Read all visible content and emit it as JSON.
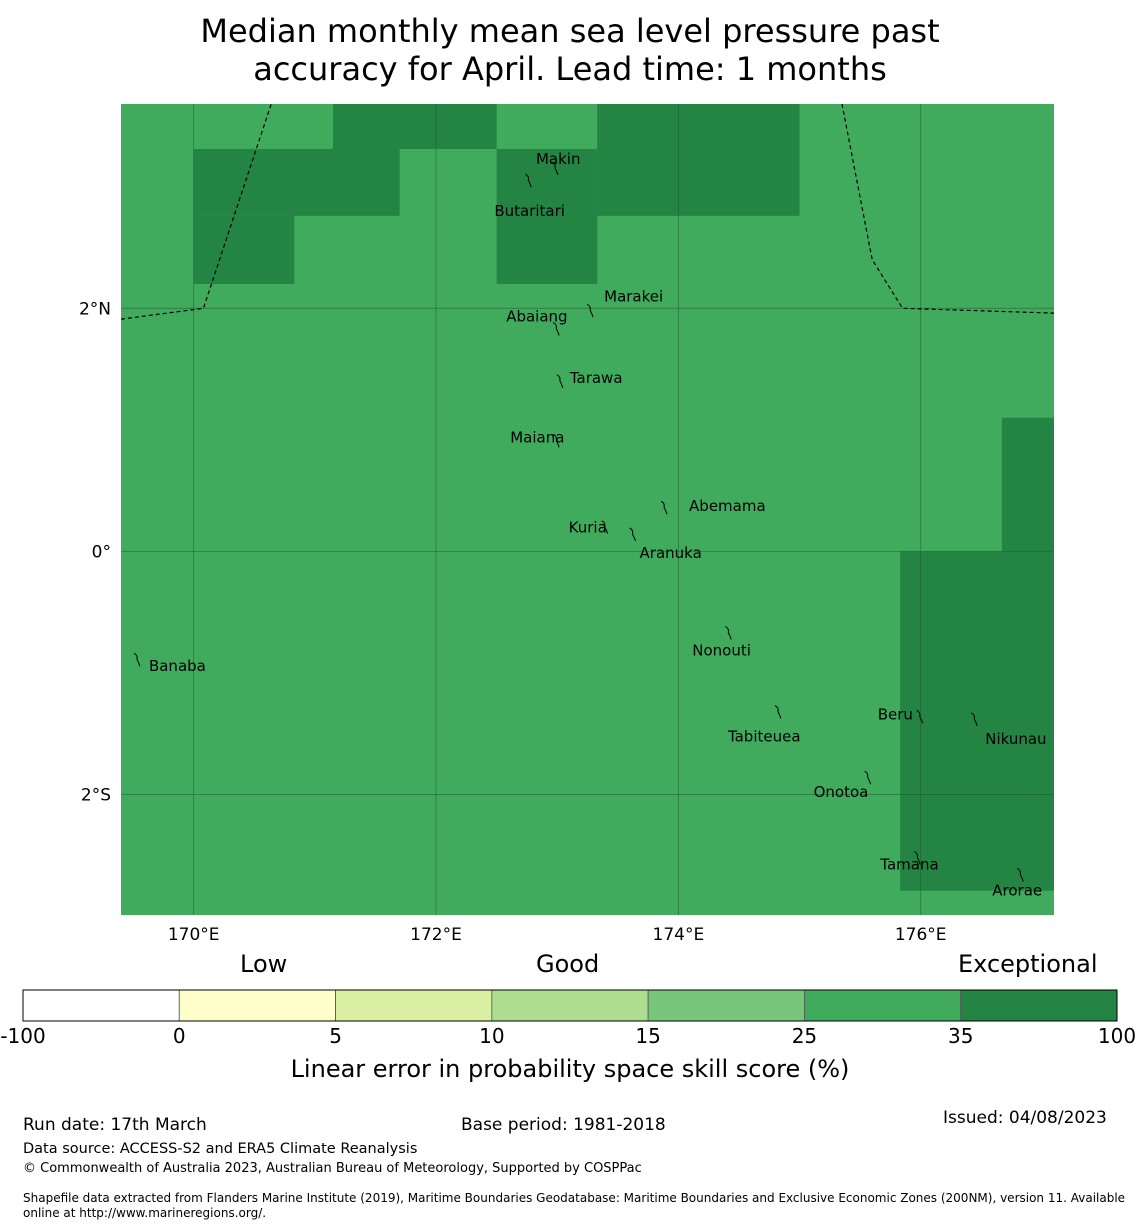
{
  "title_line1": "Median monthly mean sea level pressure past",
  "title_line2": "accuracy for April. Lead time: 1 months",
  "colors": {
    "good": "#41ab5d",
    "exceptional": "#238443",
    "grid": "#1e5a2e",
    "boundary": "#000000"
  },
  "map": {
    "lon_range": [
      169.4,
      177.1
    ],
    "lat_range": [
      -2.99,
      3.68
    ],
    "lon_ticks": [
      {
        "value": 170,
        "label": "170°E"
      },
      {
        "value": 172,
        "label": "172°E"
      },
      {
        "value": 174,
        "label": "174°E"
      },
      {
        "value": 176,
        "label": "176°E"
      }
    ],
    "lat_ticks": [
      {
        "value": 2,
        "label": "2°N"
      },
      {
        "value": 0,
        "label": "0°"
      },
      {
        "value": -2,
        "label": "2°S"
      }
    ],
    "exceptional_cells": [
      {
        "lon": [
          171.15,
          172.5
        ],
        "lat": [
          3.31,
          3.68
        ]
      },
      {
        "lon": [
          170.0,
          171.7
        ],
        "lat": [
          2.76,
          3.31
        ]
      },
      {
        "lon": [
          170.0,
          170.83
        ],
        "lat": [
          2.2,
          2.76
        ]
      },
      {
        "lon": [
          173.33,
          175.0
        ],
        "lat": [
          2.76,
          3.68
        ]
      },
      {
        "lon": [
          172.5,
          173.33
        ],
        "lat": [
          2.2,
          3.31
        ]
      },
      {
        "lon": [
          176.67,
          177.1
        ],
        "lat": [
          0.0,
          1.1
        ]
      },
      {
        "lon": [
          175.83,
          177.1
        ],
        "lat": [
          -2.79,
          0.0
        ]
      }
    ],
    "boundaries": [
      [
        [
          169.4,
          1.91
        ],
        [
          170.08,
          2.0
        ],
        [
          170.64,
          3.68
        ]
      ],
      [
        [
          175.35,
          3.68
        ],
        [
          175.6,
          2.4
        ],
        [
          175.85,
          2.0
        ],
        [
          177.1,
          1.96
        ]
      ]
    ],
    "islands": [
      {
        "name": "Makin",
        "lon": 172.99,
        "lat": 3.17
      },
      {
        "name": "Butaritari",
        "lon": 172.77,
        "lat": 3.07
      },
      {
        "name": "Marakei",
        "lon": 173.28,
        "lat": 2.0
      },
      {
        "name": "Abaiang",
        "lon": 173.0,
        "lat": 1.85
      },
      {
        "name": "Tarawa",
        "lon": 173.03,
        "lat": 1.42
      },
      {
        "name": "Maiana",
        "lon": 173.0,
        "lat": 0.93
      },
      {
        "name": "Abemama",
        "lon": 173.89,
        "lat": 0.38
      },
      {
        "name": "Kuria",
        "lon": 173.4,
        "lat": 0.22
      },
      {
        "name": "Aranuka",
        "lon": 173.63,
        "lat": 0.16
      },
      {
        "name": "Nonouti",
        "lon": 174.42,
        "lat": -0.65
      },
      {
        "name": "Banaba",
        "lon": 169.54,
        "lat": -0.87
      },
      {
        "name": "Tabiteuea",
        "lon": 174.83,
        "lat": -1.3
      },
      {
        "name": "Beru",
        "lon": 176.0,
        "lat": -1.34
      },
      {
        "name": "Nikunau",
        "lon": 176.45,
        "lat": -1.36
      },
      {
        "name": "Onotoa",
        "lon": 175.57,
        "lat": -1.84
      },
      {
        "name": "Tamana",
        "lon": 175.98,
        "lat": -2.5
      },
      {
        "name": "Arorae",
        "lon": 176.83,
        "lat": -2.64
      }
    ]
  },
  "categories": {
    "low": "Low",
    "good": "Good",
    "exceptional": "Exceptional"
  },
  "colorbar": {
    "bins": [
      {
        "from": "-100",
        "to": "0",
        "color": "#ffffff"
      },
      {
        "from": "0",
        "to": "5",
        "color": "#ffffcc"
      },
      {
        "from": "5",
        "to": "10",
        "color": "#d9f0a3"
      },
      {
        "from": "10",
        "to": "15",
        "color": "#addd8e"
      },
      {
        "from": "15",
        "to": "25",
        "color": "#78c679"
      },
      {
        "from": "25",
        "to": "35",
        "color": "#41ab5d"
      },
      {
        "from": "35",
        "to": "100",
        "color": "#238443"
      }
    ],
    "ticks": [
      "-100",
      "0",
      "5",
      "10",
      "15",
      "25",
      "35",
      "100"
    ],
    "label": "Linear error in probability space skill score (%)"
  },
  "footer": {
    "run_date": "Run date: 17th March",
    "base_period": "Base period: 1981-2018",
    "issued": "Issued: 04/08/2023",
    "data_source": "Data source: ACCESS-S2 and ERA5 Climate Reanalysis",
    "copyright": "© Commonwealth of Australia 2023, Australian Bureau of Meteorology, Supported by COSPPac",
    "shapefile_line1": "Shapefile data extracted from Flanders Marine Institute (2019), Maritime Boundaries Geodatabase: Maritime Boundaries and Exclusive Economic Zones (200NM), version 11. Available",
    "shapefile_line2": "online at http://www.marineregions.org/."
  }
}
